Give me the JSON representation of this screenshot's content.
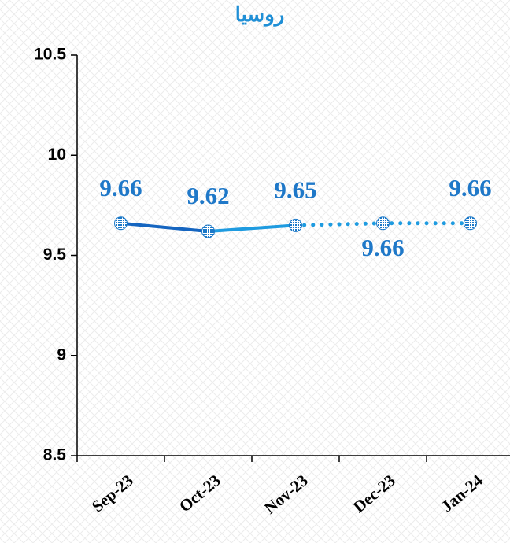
{
  "chart_data": {
    "type": "line",
    "title": "روسيا",
    "categories": [
      "Sep-23",
      "Oct-23",
      "Nov-23",
      "Dec-23",
      "Jan-24"
    ],
    "series": [
      {
        "color": "#1e9be0",
        "values": [
          9.66,
          9.62,
          9.65,
          9.66,
          9.66
        ]
      }
    ],
    "ylim": [
      8.5,
      10.5
    ],
    "yticks": [
      8.5,
      9,
      9.5,
      10,
      10.5
    ],
    "grid": false
  }
}
